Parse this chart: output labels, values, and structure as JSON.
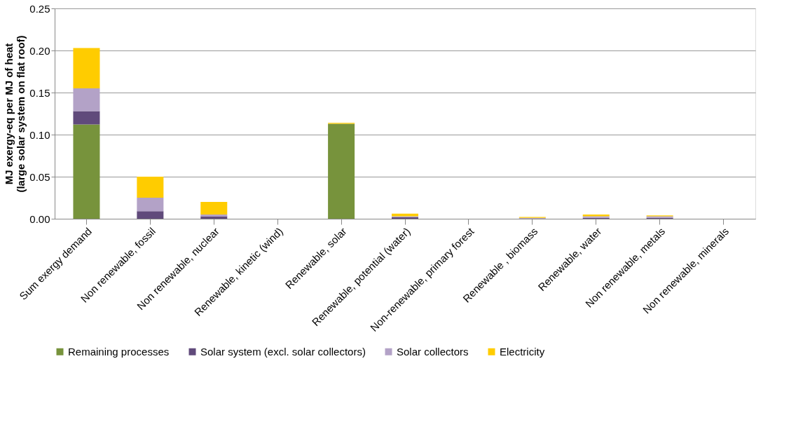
{
  "chart_data": {
    "type": "bar",
    "stacked": true,
    "ylabel": "MJ exergy-eq per MJ of heat\n(large solar system on flat roof)",
    "categories": [
      "Sum exergy demand",
      "Non renewable, fossil",
      "Non renewable, nuclear",
      "Renewable, kinetic (wind)",
      "Renewable, solar",
      "Renewable, potential (water)",
      "Non-renewable, primary forest",
      "Renewable , biomass",
      "Renewable, water",
      "Non renewable, metals",
      "Non renewable, minerals"
    ],
    "series": [
      {
        "name": "Remaining processes",
        "color": "#77933c",
        "values": [
          0.112,
          0.0,
          0.0,
          0.0,
          0.113,
          0.0,
          0.0,
          0.0,
          0.0,
          0.0,
          0.0
        ]
      },
      {
        "name": "Solar system (excl. solar collectors)",
        "color": "#604a7b",
        "values": [
          0.016,
          0.009,
          0.003,
          0.0,
          0.0,
          0.002,
          0.0,
          0.0,
          0.001,
          0.001,
          0.0
        ]
      },
      {
        "name": "Solar collectors",
        "color": "#b3a2c7",
        "values": [
          0.027,
          0.016,
          0.002,
          0.0,
          0.0,
          0.001,
          0.0,
          0.001,
          0.002,
          0.002,
          0.0
        ]
      },
      {
        "name": "Electricity",
        "color": "#ffcc00",
        "values": [
          0.048,
          0.025,
          0.015,
          0.0,
          0.001,
          0.003,
          0.0,
          0.001,
          0.002,
          0.001,
          0.0
        ]
      }
    ],
    "ylim": [
      0,
      0.25
    ],
    "yticks": [
      {
        "value": 0,
        "label": "0.00"
      },
      {
        "value": 0.05,
        "label": "0.05"
      },
      {
        "value": 0.1,
        "label": "0.10"
      },
      {
        "value": 0.15,
        "label": "0.15"
      },
      {
        "value": 0.2,
        "label": "0.20"
      },
      {
        "value": 0.25,
        "label": "0.25"
      }
    ],
    "grid": "y",
    "legend": "bottom"
  }
}
